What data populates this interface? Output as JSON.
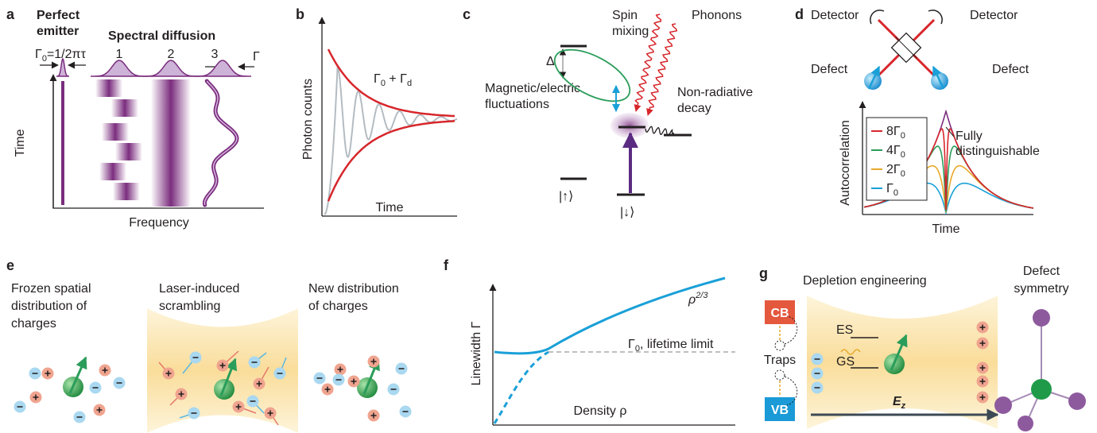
{
  "panels": {
    "a": {
      "label": "a",
      "perfect_emitter": [
        "Perfect",
        "emitter"
      ],
      "spectral_diffusion": "Spectral diffusion",
      "gamma0": [
        "Γ",
        "0",
        "=1/2πτ"
      ],
      "cases": [
        "1",
        "2",
        "3"
      ],
      "gamma": "Γ",
      "y_axis": "Time",
      "x_axis": "Frequency"
    },
    "b": {
      "label": "b",
      "envelope": [
        "Γ",
        "0",
        " + Γ",
        "d"
      ],
      "y_axis": "Photon counts",
      "x_axis": "Time"
    },
    "c": {
      "label": "c",
      "spin_mixing": [
        "Spin",
        "mixing"
      ],
      "phonons": "Phonons",
      "delta": "Δ",
      "fluctuations": [
        "Magnetic/electric",
        "fluctuations"
      ],
      "decay": [
        "Non-radiative",
        "decay"
      ],
      "up": "|↑⟩",
      "down": "|↓⟩"
    },
    "d": {
      "label": "d",
      "detectors": [
        "Detector",
        "Detector"
      ],
      "defects": [
        "Defect",
        "Defect"
      ],
      "annotation": [
        "Fully",
        "distinguishable"
      ],
      "legend": [
        [
          "8Γ",
          "0"
        ],
        [
          "4Γ",
          "0"
        ],
        [
          "2Γ",
          "0"
        ],
        [
          "Γ",
          "0"
        ]
      ],
      "y_axis": "Autocorrelation",
      "x_axis": "Time"
    },
    "e": {
      "label": "e",
      "frozen": [
        "Frozen spatial",
        "distribution of",
        "charges"
      ],
      "scrambling": [
        "Laser-induced",
        "scrambling"
      ],
      "new": [
        "New distribution",
        "of charges"
      ]
    },
    "f": {
      "label": "f",
      "power": [
        "ρ",
        "2/3"
      ],
      "limit": [
        "Γ",
        "0",
        ", lifetime limit"
      ],
      "y_axis": "Linewidth Γ",
      "x_axis": "Density ρ"
    },
    "g": {
      "label": "g",
      "depletion": "Depletion engineering",
      "symmetry": [
        "Defect",
        "symmetry"
      ],
      "cb": "CB",
      "vb": "VB",
      "traps": "Traps",
      "es": "ES",
      "gs": "GS",
      "field": [
        "E",
        "z"
      ]
    }
  }
}
